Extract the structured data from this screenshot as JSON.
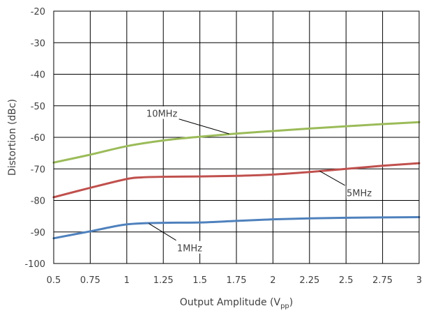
{
  "chart_data": {
    "type": "line",
    "title": "",
    "xlabel": {
      "main": "Output Amplitude (V",
      "sub": "pp",
      "close": ")"
    },
    "ylabel": "Distortion (dBc)",
    "xlim": [
      0.5,
      3
    ],
    "ylim": [
      -100,
      -20
    ],
    "x_ticks": [
      0.5,
      0.75,
      1,
      1.25,
      1.5,
      1.75,
      2,
      2.25,
      2.5,
      2.75,
      3
    ],
    "x_tick_labels": [
      "0.5",
      "0.75",
      "1",
      "1.25",
      "1.5",
      "1.75",
      "2",
      "2.25",
      "2.5",
      "2.75",
      "3"
    ],
    "y_ticks": [
      -20,
      -30,
      -40,
      -50,
      -60,
      -70,
      -80,
      -90,
      -100
    ],
    "y_tick_labels": [
      "-20",
      "-30",
      "-40",
      "-50",
      "-60",
      "-70",
      "-80",
      "-90",
      "-100"
    ],
    "grid": true,
    "legend": "none",
    "series": [
      {
        "name": "10MHz",
        "color": "#9bbb59",
        "x": [
          0.5,
          0.75,
          1,
          1.25,
          1.5,
          1.75,
          2,
          2.25,
          2.5,
          2.75,
          3
        ],
        "y": [
          -68,
          -65.5,
          -62.8,
          -61,
          -59.8,
          -58.8,
          -58,
          -57.2,
          -56.5,
          -55.8,
          -55.2
        ]
      },
      {
        "name": "5MHz",
        "color": "#c0504d",
        "x": [
          0.5,
          0.75,
          1,
          1.1,
          1.25,
          1.5,
          1.75,
          2,
          2.25,
          2.5,
          2.75,
          3
        ],
        "y": [
          -79,
          -76,
          -73.2,
          -72.7,
          -72.5,
          -72.4,
          -72.2,
          -71.8,
          -71,
          -70,
          -69,
          -68.2
        ]
      },
      {
        "name": "1MHz",
        "color": "#4f81bd",
        "x": [
          0.5,
          0.75,
          1,
          1.25,
          1.5,
          1.75,
          2,
          2.25,
          2.5,
          2.75,
          3
        ],
        "y": [
          -92,
          -89.8,
          -87.6,
          -87.1,
          -87,
          -86.5,
          -86,
          -85.7,
          -85.5,
          -85.4,
          -85.3
        ]
      }
    ],
    "annotations": [
      {
        "text": "10MHz",
        "series": "10MHz",
        "x": 1.7,
        "y": -58.9,
        "label_x": 1.24,
        "label_y": -52.6
      },
      {
        "text": "5MHz",
        "series": "5MHz",
        "x": 2.32,
        "y": -70.7,
        "label_x": 2.59,
        "label_y": -77.8
      },
      {
        "text": "1MHz",
        "series": "1MHz",
        "x": 1.15,
        "y": -87.3,
        "label_x": 1.43,
        "label_y": -95.3
      }
    ]
  }
}
